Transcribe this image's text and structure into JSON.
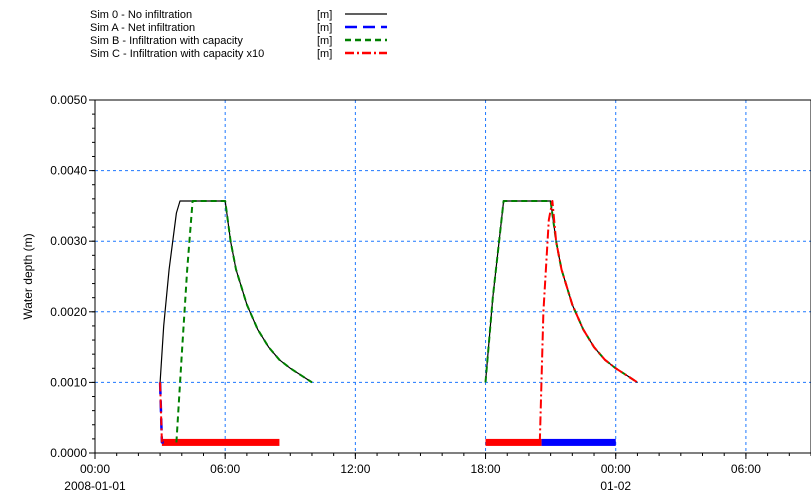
{
  "chart_data": {
    "type": "line",
    "title": "",
    "xlabel": "",
    "ylabel": "Water depth (m)",
    "xlim": [
      "2008-01-01 00:00",
      "2008-01-02 09:00"
    ],
    "ylim": [
      0.0,
      0.005
    ],
    "grid": true,
    "legend_position": "top-left",
    "x_ticks": [
      {
        "at": "2008-01-01 00:00",
        "time": "00:00",
        "date": "2008-01-01"
      },
      {
        "at": "2008-01-01 06:00",
        "time": "06:00",
        "date": ""
      },
      {
        "at": "2008-01-01 12:00",
        "time": "12:00",
        "date": ""
      },
      {
        "at": "2008-01-01 18:00",
        "time": "18:00",
        "date": ""
      },
      {
        "at": "2008-01-02 00:00",
        "time": "00:00",
        "date": "01-02"
      },
      {
        "at": "2008-01-02 06:00",
        "time": "06:00",
        "date": ""
      }
    ],
    "y_ticks": [
      "0.0000",
      "0.0010",
      "0.0020",
      "0.0030",
      "0.0040",
      "0.0050"
    ],
    "series": [
      {
        "name": "Sim 0 - No infiltration",
        "unit": "[m]",
        "color": "#000000",
        "dash": "solid",
        "width": 1.2,
        "segments": [
          [
            [
              "2008-01-01 03:00",
              0.001
            ],
            [
              "2008-01-01 03:10",
              0.0018
            ],
            [
              "2008-01-01 03:25",
              0.0026
            ],
            [
              "2008-01-01 03:45",
              0.0034
            ],
            [
              "2008-01-01 03:55",
              0.00357
            ],
            [
              "2008-01-01 06:00",
              0.00357
            ],
            [
              "2008-01-01 06:15",
              0.003
            ],
            [
              "2008-01-01 06:30",
              0.0026
            ],
            [
              "2008-01-01 07:00",
              0.0021
            ],
            [
              "2008-01-01 07:30",
              0.00175
            ],
            [
              "2008-01-01 08:00",
              0.0015
            ],
            [
              "2008-01-01 08:30",
              0.00132
            ],
            [
              "2008-01-01 09:00",
              0.0012
            ],
            [
              "2008-01-01 09:30",
              0.0011
            ],
            [
              "2008-01-01 10:00",
              0.001
            ]
          ],
          [
            [
              "2008-01-01 18:00",
              0.001
            ],
            [
              "2008-01-01 18:20",
              0.0022
            ],
            [
              "2008-01-01 18:50",
              0.00357
            ],
            [
              "2008-01-01 21:00",
              0.00357
            ],
            [
              "2008-01-01 21:15",
              0.003
            ],
            [
              "2008-01-01 21:30",
              0.0026
            ],
            [
              "2008-01-01 22:00",
              0.0021
            ],
            [
              "2008-01-01 22:30",
              0.00175
            ],
            [
              "2008-01-01 23:00",
              0.0015
            ],
            [
              "2008-01-01 23:30",
              0.00132
            ],
            [
              "2008-01-02 00:00",
              0.0012
            ],
            [
              "2008-01-02 00:30",
              0.0011
            ],
            [
              "2008-01-02 01:00",
              0.001
            ]
          ]
        ]
      },
      {
        "name": "Sim A - Net infiltration",
        "unit": "[m]",
        "color": "#0000ff",
        "dash": "long-dash",
        "width": 2.5,
        "segments": [
          [
            [
              "2008-01-01 03:00",
              0.001
            ],
            [
              "2008-01-01 03:05",
              0.00015
            ],
            [
              "2008-01-01 03:10",
              0.00015
            ]
          ],
          [
            [
              "2008-01-01 21:00",
              0.00015
            ],
            [
              "2008-01-02 00:00",
              0.00015
            ]
          ]
        ]
      },
      {
        "name": "Sim B - Infiltration with capacity",
        "unit": "[m]",
        "color": "#008000",
        "dash": "dash",
        "width": 2,
        "segments": [
          [
            [
              "2008-01-01 03:45",
              0.00015
            ],
            [
              "2008-01-01 04:00",
              0.0014
            ],
            [
              "2008-01-01 04:15",
              0.0026
            ],
            [
              "2008-01-01 04:30",
              0.00357
            ],
            [
              "2008-01-01 06:00",
              0.00357
            ],
            [
              "2008-01-01 06:15",
              0.003
            ],
            [
              "2008-01-01 06:30",
              0.0026
            ],
            [
              "2008-01-01 07:00",
              0.0021
            ],
            [
              "2008-01-01 07:30",
              0.00175
            ],
            [
              "2008-01-01 08:00",
              0.0015
            ],
            [
              "2008-01-01 08:30",
              0.00132
            ],
            [
              "2008-01-01 09:00",
              0.0012
            ],
            [
              "2008-01-01 09:30",
              0.0011
            ],
            [
              "2008-01-01 10:00",
              0.001
            ]
          ],
          [
            [
              "2008-01-01 18:00",
              0.001
            ],
            [
              "2008-01-01 18:20",
              0.0022
            ],
            [
              "2008-01-01 18:50",
              0.00357
            ],
            [
              "2008-01-01 21:00",
              0.00357
            ],
            [
              "2008-01-01 21:15",
              0.003
            ],
            [
              "2008-01-01 21:30",
              0.0026
            ],
            [
              "2008-01-01 22:00",
              0.0021
            ],
            [
              "2008-01-01 22:30",
              0.00175
            ],
            [
              "2008-01-01 23:00",
              0.0015
            ],
            [
              "2008-01-01 23:30",
              0.00132
            ],
            [
              "2008-01-02 00:00",
              0.0012
            ],
            [
              "2008-01-02 00:30",
              0.0011
            ],
            [
              "2008-01-02 01:00",
              0.001
            ]
          ]
        ]
      },
      {
        "name": "Sim C - Infiltration with capacity x10",
        "unit": "[m]",
        "color": "#ff0000",
        "dash": "dash-dot",
        "width": 2,
        "segments": [
          [
            [
              "2008-01-01 03:00",
              0.001
            ],
            [
              "2008-01-01 03:05",
              0.00015
            ]
          ],
          [
            [
              "2008-01-01 20:30",
              0.00015
            ],
            [
              "2008-01-01 20:40",
              0.002
            ],
            [
              "2008-01-01 20:55",
              0.0033
            ],
            [
              "2008-01-01 21:05",
              0.00357
            ],
            [
              "2008-01-01 21:15",
              0.003
            ],
            [
              "2008-01-01 21:30",
              0.0026
            ],
            [
              "2008-01-01 22:00",
              0.0021
            ],
            [
              "2008-01-01 22:30",
              0.00175
            ],
            [
              "2008-01-01 23:00",
              0.0015
            ],
            [
              "2008-01-01 23:30",
              0.00132
            ],
            [
              "2008-01-02 00:00",
              0.0012
            ],
            [
              "2008-01-02 00:30",
              0.0011
            ],
            [
              "2008-01-02 01:00",
              0.001
            ]
          ]
        ]
      }
    ],
    "bars": [
      {
        "series": "Sim C - Infiltration with capacity x10",
        "color": "#ff0000",
        "from": "2008-01-01 03:05",
        "to": "2008-01-01 08:30",
        "y": 0.00015
      },
      {
        "series": "Sim C - Infiltration with capacity x10",
        "color": "#ff0000",
        "from": "2008-01-01 18:00",
        "to": "2008-01-01 20:35",
        "y": 0.00015
      },
      {
        "series": "Sim A - Net infiltration",
        "color": "#0000ff",
        "from": "2008-01-01 20:35",
        "to": "2008-01-02 00:00",
        "y": 0.00015
      }
    ]
  }
}
